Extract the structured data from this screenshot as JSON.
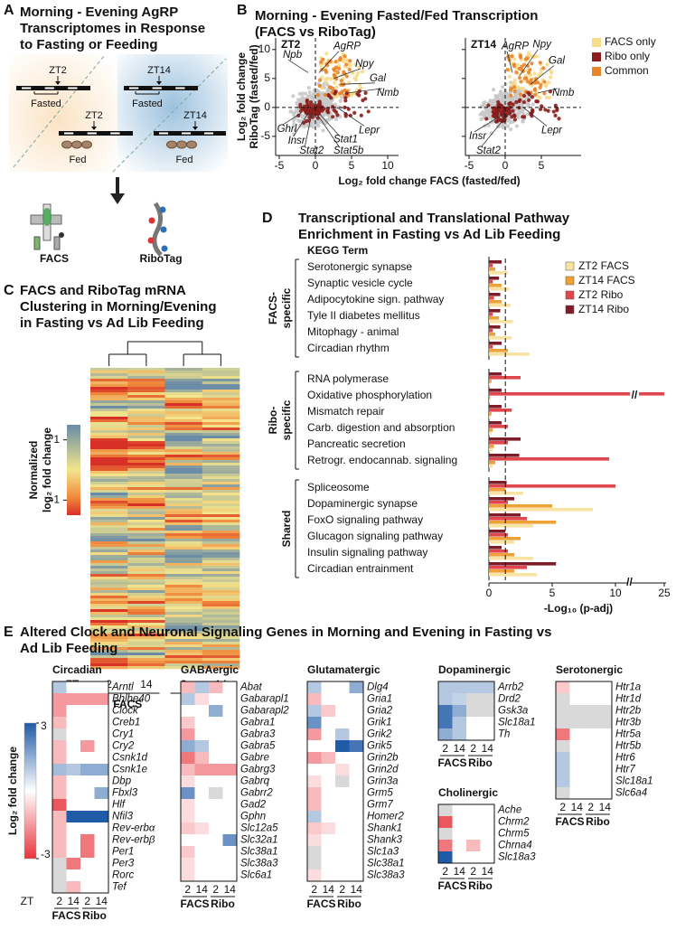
{
  "panel_a": {
    "panel": "A",
    "title": [
      "Morning - Evening AgRP",
      "Transcriptomes in Response",
      "to Fasting or Feeding"
    ],
    "zt2": "ZT2",
    "zt14": "ZT14",
    "fasted": "Fasted",
    "fed": "Fed",
    "facs": "FACS",
    "ribotag": "RiboTag"
  },
  "chart_data": [
    {
      "type": "scatter",
      "panel": "B",
      "title": [
        "Morning - Evening Fasted/Fed Transcription",
        "(FACS vs RiboTag)"
      ],
      "x_label": "Log₂ fold change FACS (fasted/fed)",
      "y_label": [
        "Log₂ fold change",
        "RiboTag (fasted/fed)"
      ],
      "ylim": [
        -8.3,
        12
      ],
      "yticks": [
        10,
        5,
        0,
        -5
      ],
      "subplots": [
        {
          "label": "ZT2",
          "xlim": [
            -5.5,
            11.5
          ],
          "xticks": [
            -5,
            0,
            5,
            10
          ],
          "genes": [
            "Npb",
            "AgRP",
            "Npy",
            "Gal",
            "Nmb",
            "Lepr",
            "Stat1",
            "Stat5b",
            "Stat2",
            "Insr",
            "Ghrl"
          ]
        },
        {
          "label": "ZT14",
          "xlim": [
            -5.5,
            10.5
          ],
          "xticks": [
            -5,
            0,
            5
          ],
          "genes": [
            "AgRP",
            "Npy",
            "Gal",
            "Nmb",
            "Lepr",
            "Insr",
            "Stat2"
          ]
        }
      ],
      "legend": [
        {
          "name": "FACS only",
          "color": "#f7dc8a"
        },
        {
          "name": "Ribo only",
          "color": "#8c1c1c"
        },
        {
          "name": "Common",
          "color": "#e8842a"
        }
      ]
    },
    {
      "type": "heatmap",
      "panel": "C",
      "title": [
        "FACS and RiboTag mRNA",
        "Clustering in Morning/Evening",
        "in Fasting vs Ad Lib Feeding"
      ],
      "colorbar_label": [
        "Normalized",
        "log₂ fold change"
      ],
      "colorbar_ticks": [
        1,
        -1
      ],
      "clim": [
        -1.5,
        1.5
      ],
      "column_axis_label": "ZT",
      "columns": [
        "2",
        "14",
        "2",
        "14"
      ],
      "column_groups": [
        "FACS",
        "Ribo"
      ]
    },
    {
      "type": "bar",
      "panel": "D",
      "title": [
        "Transcriptional and Translational Pathway",
        "Enrichment in Fasting vs Ad Lib Feeding"
      ],
      "header": "KEGG Term",
      "categories": [
        "Serotonergic synapse",
        "Synaptic vesicle cycle",
        "Adipocytokine sign. pathway",
        "Tyle II diabetes mellitus",
        "Mitophagy - animal",
        "Circadian rhythm",
        "RNA polymerase",
        "Oxidative phosphorylation",
        "Mismatch repair",
        "Carb. digestion and absorption",
        "Pancreatic secretion",
        "Retrogr. endocannab. signaling",
        "Spliceosome",
        "Dopaminergic synapse",
        "FoxO signaling pathway",
        "Glucagon signaling pathway",
        "Insulin signaling pathway",
        "Circadian entrainment"
      ],
      "groups": [
        {
          "label": [
            "FACS-",
            "specific"
          ],
          "size": 6
        },
        {
          "label": [
            "Ribo-",
            "specific"
          ],
          "size": 6
        },
        {
          "label": [
            "Shared"
          ],
          "size": 6
        }
      ],
      "series": [
        {
          "name": "ZT2 FACS",
          "color": "#f8e3a3",
          "values": [
            1.5,
            1.6,
            1.7,
            1.9,
            1.8,
            3.2,
            0.1,
            0.1,
            0.1,
            0.2,
            0.3,
            0.3,
            2.7,
            8.2,
            3.5,
            2.0,
            3.5,
            3.8
          ]
        },
        {
          "name": "ZT14 FACS",
          "color": "#eea236",
          "values": [
            0.5,
            1.0,
            1.0,
            0.8,
            0.5,
            1.5,
            0.2,
            0.1,
            0.2,
            0.3,
            0.4,
            0.5,
            1.3,
            5.0,
            5.3,
            2.5,
            2.0,
            2.0
          ]
        },
        {
          "name": "ZT2 Ribo",
          "color": "#e0474c",
          "values": [
            0.3,
            0.3,
            0.4,
            0.3,
            0.3,
            0.3,
            2.5,
            25,
            1.8,
            1.5,
            1.5,
            9.5,
            10,
            1.5,
            3.0,
            1.5,
            1.5,
            3.0
          ]
        },
        {
          "name": "ZT14 Ribo",
          "color": "#7e1c2a",
          "values": [
            1.0,
            0.8,
            0.9,
            0.9,
            0.9,
            1.0,
            1.0,
            1.0,
            1.0,
            1.0,
            2.5,
            2.4,
            1.4,
            2.0,
            2.5,
            1.3,
            1.0,
            5.3
          ]
        }
      ],
      "xlim": [
        0,
        25
      ],
      "xticks": [
        0,
        5,
        10,
        25
      ],
      "axis_break": [
        11,
        22
      ],
      "break_mark": "//",
      "threshold": 1.3,
      "x_label": "-Log₁₀ (p-adj)"
    },
    {
      "type": "heatmap",
      "panel": "E",
      "title": [
        "Altered Clock and Neuronal Signaling Genes in Morning and Evening in Fasting vs",
        "Ad Lib Feeding"
      ],
      "colorbar_label": "Log₂ fold change",
      "colorbar_ticks": [
        3,
        -3
      ],
      "clim": [
        -3,
        3
      ],
      "column_axis_label": "ZT",
      "columns": [
        "2",
        "14",
        "2",
        "14"
      ],
      "column_groups": [
        "FACS",
        "Ribo"
      ],
      "groups": [
        {
          "name": "Circadian",
          "genes": [
            "Arntl",
            "Bhlhe40",
            "Clock",
            "Creb1",
            "Cry1",
            "Cry2",
            "Csnk1d",
            "Csnk1e",
            "Dbp",
            "Fbxl3",
            "Hlf",
            "Nfil3",
            "Rev-erbα",
            "Rev-erbβ",
            "Per1",
            "Per3",
            "Rorc",
            "Tef"
          ],
          "values": [
            [
              1,
              0,
              0,
              0
            ],
            [
              -1.5,
              -1.5,
              -1.5,
              -1.5
            ],
            [
              -1.5,
              0,
              0,
              0
            ],
            [
              -1,
              0,
              0,
              0
            ],
            [
              null,
              0,
              0,
              0
            ],
            [
              -1,
              0,
              -1.5,
              0
            ],
            [
              -1,
              0,
              0,
              0
            ],
            [
              1.2,
              1,
              1.5,
              1.5
            ],
            [
              -1,
              0,
              0,
              0
            ],
            [
              -1,
              0,
              0,
              1.5
            ],
            [
              -2.5,
              0,
              0,
              0
            ],
            [
              -1,
              3,
              3,
              3
            ],
            [
              -1,
              0,
              0,
              0
            ],
            [
              -1,
              0,
              -2,
              0
            ],
            [
              -1,
              0,
              -2,
              0
            ],
            [
              null,
              -2,
              0,
              0
            ],
            [
              null,
              0,
              0,
              0
            ],
            [
              null,
              -1,
              0,
              0
            ]
          ]
        },
        {
          "name": "GABAergic",
          "genes": [
            "Abat",
            "Gabarapl1",
            "Gabarapl2",
            "Gabra1",
            "Gabra3",
            "Gabra5",
            "Gabre",
            "Gabrg3",
            "Gabrq",
            "Gabrr2",
            "Gad2",
            "Gphn",
            "Slc12a5",
            "Slc32a1",
            "Slc38a1",
            "Slc38a3",
            "Slc6a1"
          ],
          "values": [
            [
              -1,
              1,
              -1,
              0
            ],
            [
              1,
              -0.5,
              0,
              0
            ],
            [
              0,
              0,
              1.5,
              0
            ],
            [
              -0.8,
              0,
              0,
              0
            ],
            [
              -1.5,
              0,
              0,
              0
            ],
            [
              1.5,
              1,
              0,
              0
            ],
            [
              -2,
              -1,
              0,
              0
            ],
            [
              -1,
              -1.5,
              -1.5,
              -1.5
            ],
            [
              -0.5,
              0,
              0,
              0
            ],
            [
              2,
              0,
              null,
              0
            ],
            [
              -0.5,
              0,
              0,
              0
            ],
            [
              -0.5,
              0,
              0,
              0
            ],
            [
              -0.8,
              -0.5,
              0,
              0
            ],
            [
              0,
              0,
              0,
              2
            ],
            [
              -0.8,
              0,
              0,
              0
            ],
            [
              -0.5,
              0,
              0,
              0
            ],
            [
              -0.5,
              0,
              0,
              0
            ]
          ]
        },
        {
          "name": "Glutamatergic",
          "genes": [
            "Dlg4",
            "Gria1",
            "Gria2",
            "Grik1",
            "Grik2",
            "Grik5",
            "Grin2b",
            "Grin2d",
            "Grin3a",
            "Grm5",
            "Grm7",
            "Homer2",
            "Shank1",
            "Shank3",
            "Slc1a3",
            "Slc38a1",
            "Slc38a3"
          ],
          "values": [
            [
              1,
              0,
              0,
              1.5
            ],
            [
              -1,
              0,
              0,
              0
            ],
            [
              1,
              -0.8,
              0,
              0
            ],
            [
              2,
              0,
              0,
              0
            ],
            [
              -1.5,
              0,
              1,
              0
            ],
            [
              0,
              0,
              3,
              2.5
            ],
            [
              -1.5,
              -1,
              0,
              0
            ],
            [
              0,
              0,
              -0.5,
              0
            ],
            [
              -0.5,
              0,
              null,
              0
            ],
            [
              -1,
              0,
              0,
              0
            ],
            [
              -1,
              0,
              0,
              0
            ],
            [
              1,
              0,
              0,
              0
            ],
            [
              -0.8,
              -0.5,
              0,
              0
            ],
            [
              -0.5,
              0,
              0,
              0
            ],
            [
              null,
              0,
              0,
              0
            ],
            [
              null,
              0,
              0,
              0
            ],
            [
              -0.5,
              0,
              0,
              0
            ]
          ]
        },
        {
          "name": "Dopaminergic",
          "genes": [
            "Arrb2",
            "Drd2",
            "Gsk3a",
            "Slc18a1",
            "Th"
          ],
          "values": [
            [
              1,
              1,
              1,
              1
            ],
            [
              1,
              0.8,
              null,
              null
            ],
            [
              2.5,
              1.5,
              null,
              null
            ],
            [
              2.5,
              1,
              0,
              0
            ],
            [
              1.5,
              1,
              0,
              0
            ]
          ]
        },
        {
          "name": "Cholinergic",
          "genes": [
            "Ache",
            "Chrm2",
            "Chrm5",
            "Chrna4",
            "Slc18a3"
          ],
          "values": [
            [
              null,
              0,
              0,
              0
            ],
            [
              -2.5,
              0,
              0,
              0
            ],
            [
              null,
              0,
              0,
              0
            ],
            [
              -2,
              0,
              -1,
              0
            ],
            [
              3,
              0,
              0,
              0
            ]
          ]
        },
        {
          "name": "Serotonergic",
          "genes": [
            "Htr1a",
            "Htr1d",
            "Htr2b",
            "Htr3b",
            "Htr5a",
            "Htr5b",
            "Htr6",
            "Htr7",
            "Slc18a1",
            "Slc6a4"
          ],
          "values": [
            [
              -0.8,
              0,
              0,
              0
            ],
            [
              null,
              0,
              0,
              0
            ],
            [
              null,
              null,
              null,
              null
            ],
            [
              null,
              null,
              null,
              null
            ],
            [
              -2,
              0,
              0,
              0
            ],
            [
              null,
              0,
              0,
              0
            ],
            [
              1,
              0,
              0,
              0
            ],
            [
              1,
              0,
              0,
              0
            ],
            [
              1,
              0,
              0,
              0
            ],
            [
              null,
              0,
              0,
              0
            ]
          ]
        }
      ]
    }
  ]
}
